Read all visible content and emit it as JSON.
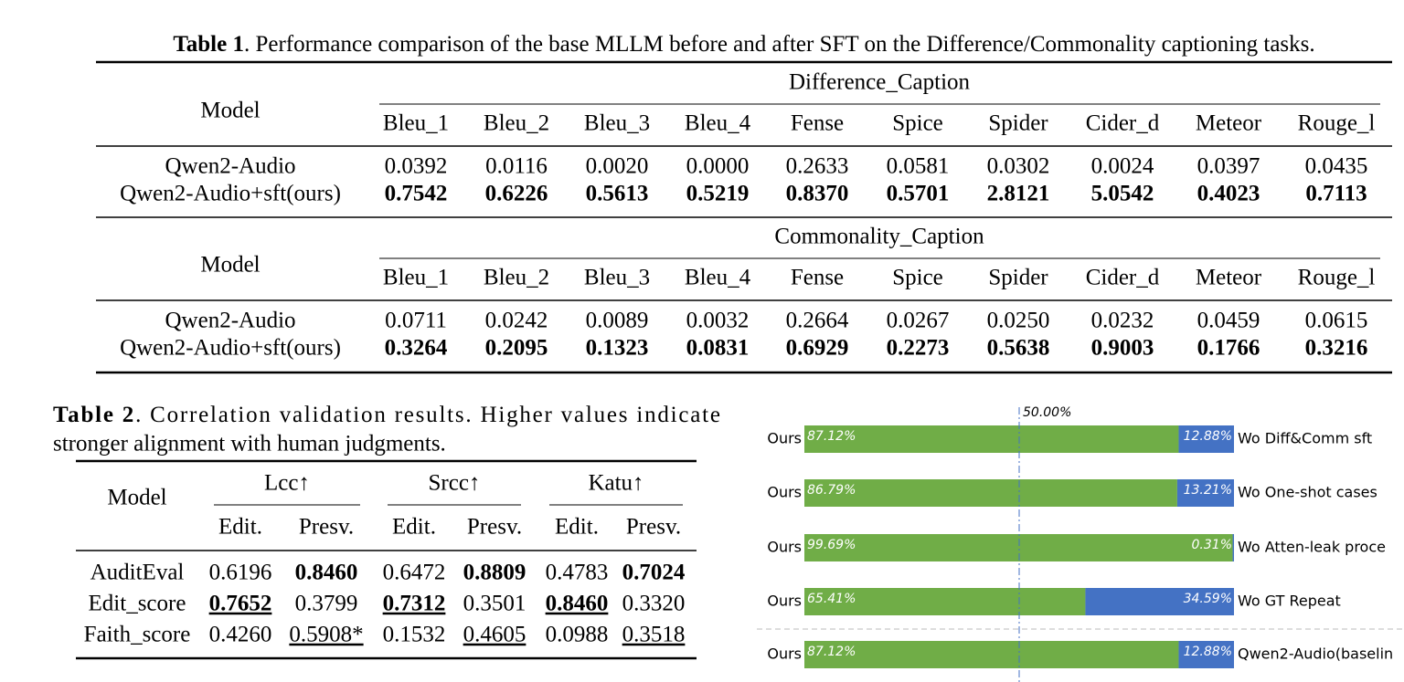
{
  "table1": {
    "label": "Table 1",
    "caption": ". Performance comparison of the base MLLM before and after SFT on the Difference/Commonality captioning tasks.",
    "model_header": "Model",
    "blocks": [
      {
        "title": "Difference_Caption",
        "columns": [
          "Bleu_1",
          "Bleu_2",
          "Bleu_3",
          "Bleu_4",
          "Fense",
          "Spice",
          "Spider",
          "Cider_d",
          "Meteor",
          "Rouge_l"
        ],
        "rows": [
          {
            "model": "Qwen2-Audio",
            "cells": [
              "0.0392",
              "0.0116",
              "0.0020",
              "0.0000",
              "0.2633",
              "0.0581",
              "0.0302",
              "0.0024",
              "0.0397",
              "0.0435"
            ]
          },
          {
            "model": "Qwen2-Audio+sft(ours)",
            "bold": true,
            "cells": [
              "0.7542",
              "0.6226",
              "0.5613",
              "0.5219",
              "0.8370",
              "0.5701",
              "2.8121",
              "5.0542",
              "0.4023",
              "0.7113"
            ]
          }
        ]
      },
      {
        "title": "Commonality_Caption",
        "columns": [
          "Bleu_1",
          "Bleu_2",
          "Bleu_3",
          "Bleu_4",
          "Fense",
          "Spice",
          "Spider",
          "Cider_d",
          "Meteor",
          "Rouge_l"
        ],
        "rows": [
          {
            "model": "Qwen2-Audio",
            "cells": [
              "0.0711",
              "0.0242",
              "0.0089",
              "0.0032",
              "0.2664",
              "0.0267",
              "0.0250",
              "0.0232",
              "0.0459",
              "0.0615"
            ]
          },
          {
            "model": "Qwen2-Audio+sft(ours)",
            "bold": true,
            "cells": [
              "0.3264",
              "0.2095",
              "0.1323",
              "0.0831",
              "0.6929",
              "0.2273",
              "0.5638",
              "0.9003",
              "0.1766",
              "0.3216"
            ]
          }
        ]
      }
    ]
  },
  "table2": {
    "label": "Table 2",
    "caption": [
      ". Correlation validation results.  Higher values indicate",
      "stronger alignment with human judgments."
    ],
    "model_header": "Model",
    "groups": [
      "Lcc↑",
      "Srcc↑",
      "Katu↑"
    ],
    "subheaders": [
      "Edit.",
      "Presv.",
      "Edit.",
      "Presv.",
      "Edit.",
      "Presv."
    ],
    "rows": [
      {
        "model": "AuditEval",
        "cells": [
          "0.6196",
          "0.8460",
          "0.6472",
          "0.8809",
          "0.4783",
          "0.7024"
        ],
        "bold": [
          1,
          3,
          5
        ]
      },
      {
        "model": "Edit_score",
        "cells": [
          "0.7652",
          "0.3799",
          "0.7312",
          "0.3501",
          "0.8460",
          "0.3320"
        ],
        "bold": [
          0,
          2,
          4
        ],
        "underline": [
          0,
          2,
          4
        ]
      },
      {
        "model": "Faith_score",
        "cells": [
          "0.4260",
          "0.5908*",
          "0.1532",
          "0.4605",
          "0.0988",
          "0.3518"
        ],
        "underline": [
          1,
          3,
          5
        ]
      }
    ]
  },
  "chart_data": {
    "type": "bar",
    "orientation": "horizontal",
    "stacked": true,
    "categories": [
      "Wo Diff&Comm sft",
      "Wo One-shot cases",
      "Wo Atten-leak proce",
      "Wo GT Repeat",
      "Qwen2-Audio(baselin"
    ],
    "series": [
      {
        "name": "Ours",
        "color": "#70ad47",
        "values": [
          87.12,
          86.79,
          99.69,
          65.41,
          87.12
        ],
        "value_labels": [
          "87.12%",
          "86.79%",
          "99.69%",
          "65.41%",
          "87.12%"
        ]
      },
      {
        "color": "#4472c4",
        "values": [
          12.88,
          13.21,
          0.31,
          34.59,
          12.88
        ],
        "value_labels": [
          "12.88%",
          "13.21%",
          "0.31%",
          "34.59%",
          "12.88%"
        ]
      }
    ],
    "xlim": [
      0,
      100
    ],
    "reference": {
      "value": 50,
      "label": "50.00%"
    }
  }
}
